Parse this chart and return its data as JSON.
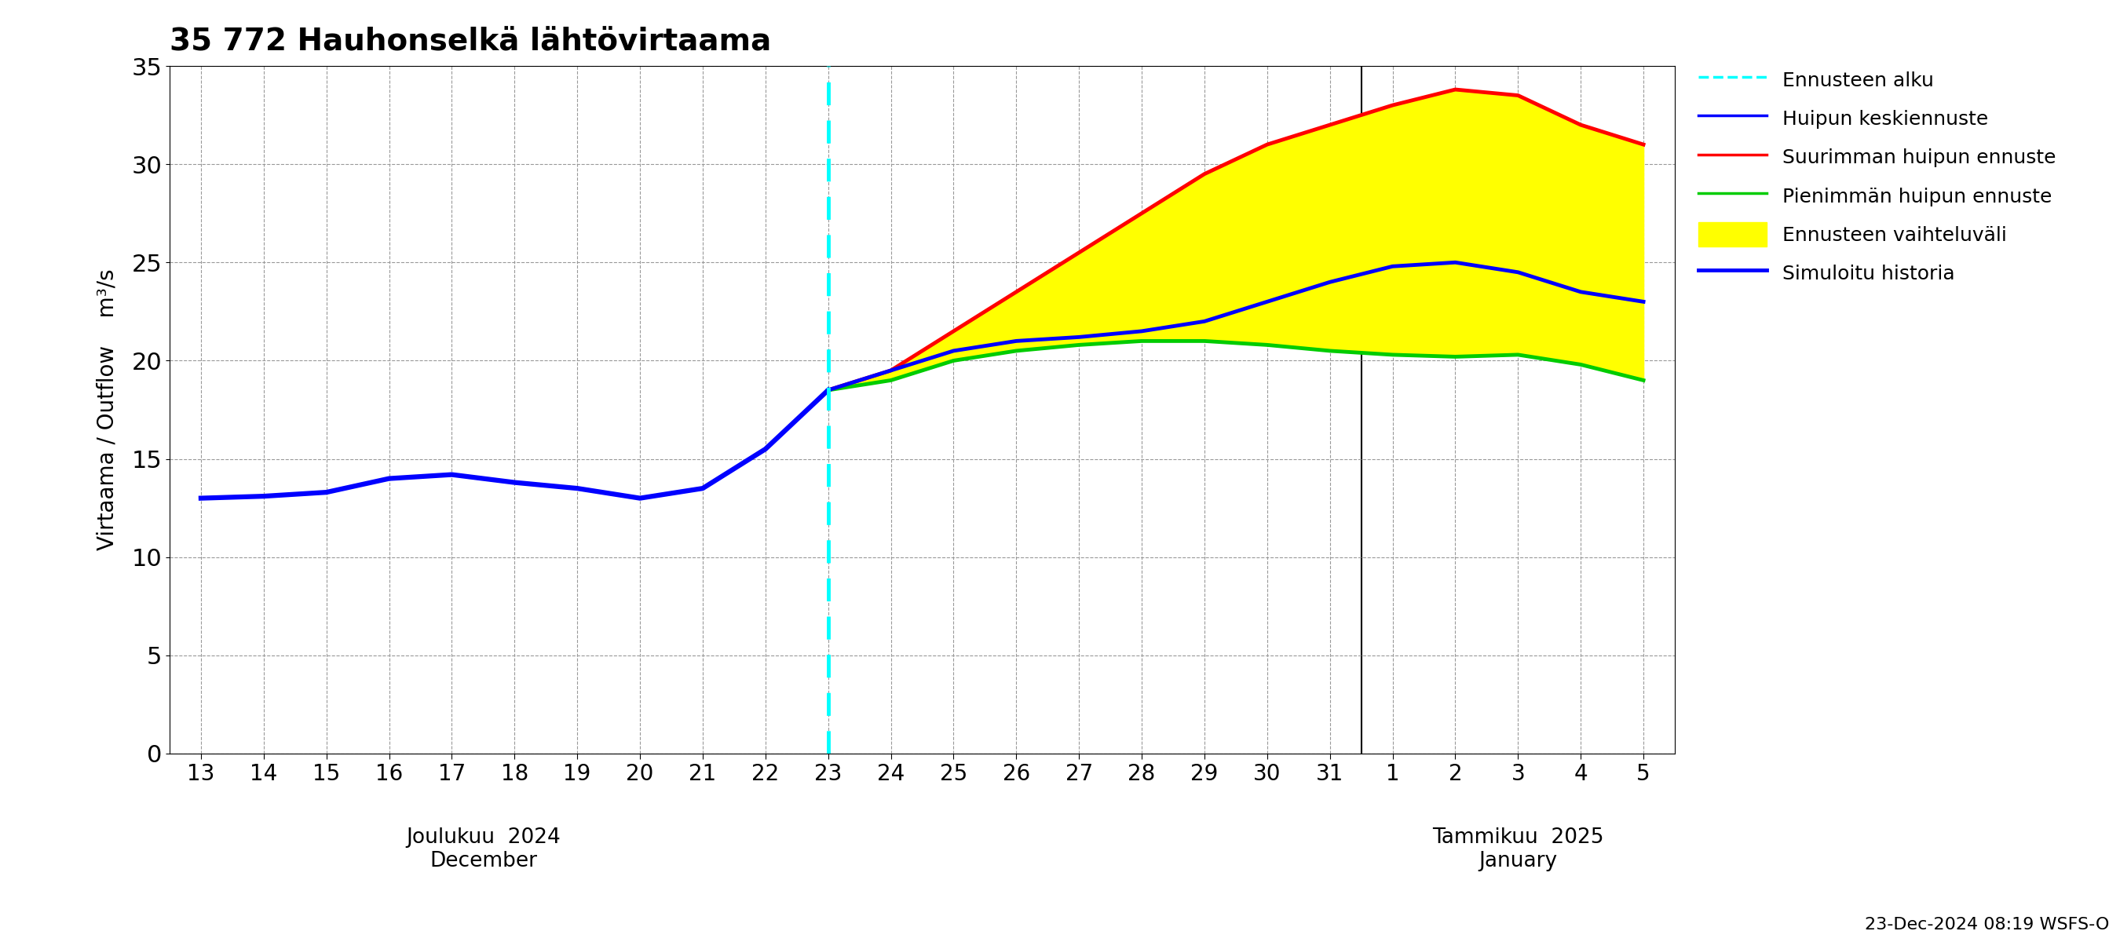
{
  "title": "35 772 Hauhonselkä lähtövirtaama",
  "ylabel": "Virtaama / Outflow    m³/s",
  "ylim": [
    0,
    35
  ],
  "yticks": [
    0,
    5,
    10,
    15,
    20,
    25,
    30,
    35
  ],
  "background_color": "#ffffff",
  "forecast_start_x": 10.0,
  "month_label_dec": "Joulukuu  2024\nDecember",
  "month_label_jan": "Tammikuu  2025\nJanuary",
  "footer_text": "23-Dec-2024 08:19 WSFS-O",
  "legend_entries": [
    {
      "label": "Ennusteen alku",
      "color": "#00ffff",
      "linestyle": "dashed",
      "linewidth": 2.5
    },
    {
      "label": "Huipun keskiennuste",
      "color": "#0000ff",
      "linestyle": "solid",
      "linewidth": 2.5
    },
    {
      "label": "Suurimman huipun ennuste",
      "color": "#ff0000",
      "linestyle": "solid",
      "linewidth": 2.5
    },
    {
      "label": "Pienimmän huipun ennuste",
      "color": "#00cc00",
      "linestyle": "solid",
      "linewidth": 2.5
    },
    {
      "label": "Ennusteen vaihteluväli",
      "color": "#ffff00",
      "linestyle": "solid",
      "linewidth": 10
    },
    {
      "label": "Simuloitu historia",
      "color": "#0000ff",
      "linestyle": "solid",
      "linewidth": 3.5
    }
  ],
  "x_values_hist": [
    0,
    1,
    2,
    3,
    4,
    5,
    6,
    7,
    8,
    9,
    10
  ],
  "y_hist": [
    13.0,
    13.1,
    13.3,
    14.0,
    14.2,
    13.8,
    13.5,
    13.0,
    13.5,
    15.5,
    18.5
  ],
  "x_values_fcast": [
    10,
    11,
    12,
    13,
    14,
    15,
    16,
    17,
    18,
    19,
    20,
    21,
    22,
    23
  ],
  "y_mean": [
    18.5,
    19.5,
    20.5,
    21.0,
    21.2,
    21.5,
    22.0,
    23.0,
    24.0,
    24.8,
    25.0,
    24.5,
    23.5,
    23.0
  ],
  "y_max": [
    18.5,
    19.5,
    21.5,
    23.5,
    25.5,
    27.5,
    29.5,
    31.0,
    32.0,
    33.0,
    33.8,
    33.5,
    32.0,
    31.0
  ],
  "y_min": [
    18.5,
    19.0,
    20.0,
    20.5,
    20.8,
    21.0,
    21.0,
    20.8,
    20.5,
    20.3,
    20.2,
    20.3,
    19.8,
    19.0
  ],
  "x_ticks_all": [
    0,
    1,
    2,
    3,
    4,
    5,
    6,
    7,
    8,
    9,
    10,
    11,
    12,
    13,
    14,
    15,
    16,
    17,
    18,
    19,
    20,
    21,
    22,
    23
  ],
  "all_tick_labels": [
    "13",
    "14",
    "15",
    "16",
    "17",
    "18",
    "19",
    "20",
    "21",
    "22",
    "23",
    "24",
    "25",
    "26",
    "27",
    "28",
    "29",
    "30",
    "31",
    "1",
    "2",
    "3",
    "4",
    "5"
  ]
}
